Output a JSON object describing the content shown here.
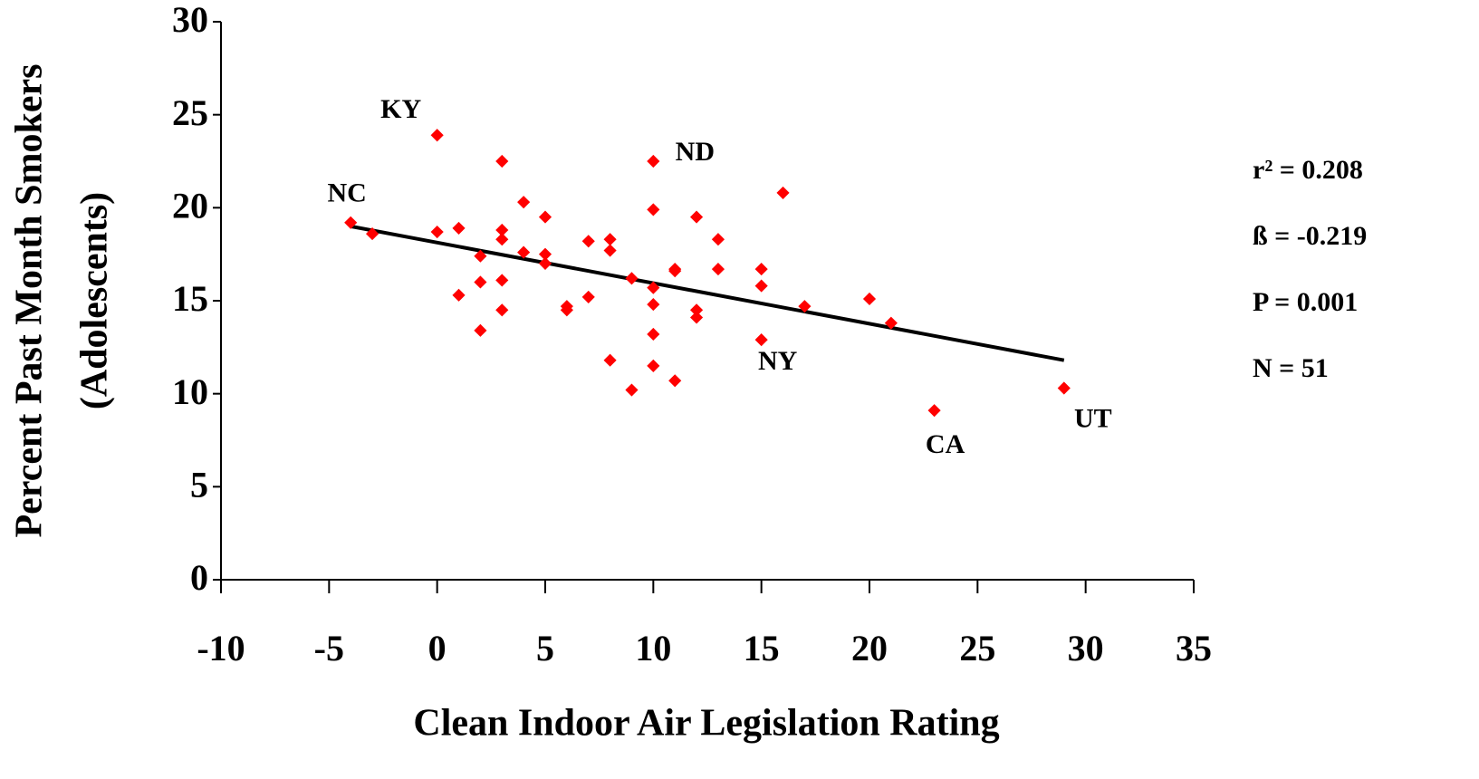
{
  "chart_data": {
    "type": "scatter",
    "xlabel": "Clean Indoor Air Legislation Rating",
    "ylabel": [
      "Percent Past Month Smokers",
      "(Adolescents)"
    ],
    "xlim": [
      -10,
      35
    ],
    "xticks": [
      -10,
      -5,
      0,
      5,
      10,
      15,
      20,
      25,
      30,
      35
    ],
    "ylim": [
      0,
      30
    ],
    "yticks": [
      0,
      5,
      10,
      15,
      20,
      25,
      30
    ],
    "color": "#ff0000",
    "x": [
      -4,
      -3,
      0,
      0,
      1,
      1,
      2,
      2,
      2,
      3,
      3,
      3,
      3,
      3,
      4,
      4,
      5,
      5,
      5,
      6,
      6,
      7,
      7,
      8,
      8,
      8,
      9,
      9,
      10,
      10,
      10,
      10,
      10,
      10,
      11,
      11,
      11,
      12,
      12,
      12,
      13,
      13,
      15,
      15,
      15,
      16,
      17,
      20,
      21,
      23,
      29
    ],
    "y": [
      19.2,
      18.6,
      23.9,
      18.7,
      18.9,
      15.3,
      17.4,
      16.0,
      13.4,
      22.5,
      18.8,
      18.3,
      16.1,
      14.5,
      20.3,
      17.6,
      19.5,
      17.5,
      17.0,
      14.7,
      14.5,
      18.2,
      15.2,
      18.3,
      17.7,
      11.8,
      16.2,
      10.2,
      22.5,
      19.9,
      15.7,
      14.8,
      13.2,
      11.5,
      16.7,
      16.6,
      10.7,
      19.5,
      14.5,
      14.1,
      18.3,
      16.7,
      16.7,
      15.8,
      12.9,
      20.8,
      14.7,
      15.1,
      13.8,
      9.1,
      10.3
    ],
    "labels": [
      "NC",
      null,
      "KY",
      null,
      null,
      null,
      null,
      null,
      null,
      null,
      null,
      null,
      null,
      null,
      null,
      null,
      null,
      null,
      null,
      null,
      null,
      null,
      null,
      null,
      null,
      null,
      null,
      null,
      "ND",
      null,
      null,
      null,
      null,
      null,
      null,
      null,
      null,
      null,
      null,
      null,
      null,
      null,
      null,
      null,
      "NY",
      null,
      null,
      null,
      null,
      "CA",
      "UT"
    ],
    "trendline": {
      "color": "#000000",
      "x": [
        -4,
        29
      ],
      "y": [
        19.0,
        11.8
      ]
    },
    "stats": [
      "r² = 0.208",
      "ß = -0.219",
      "P = 0.001",
      "N = 51"
    ]
  }
}
